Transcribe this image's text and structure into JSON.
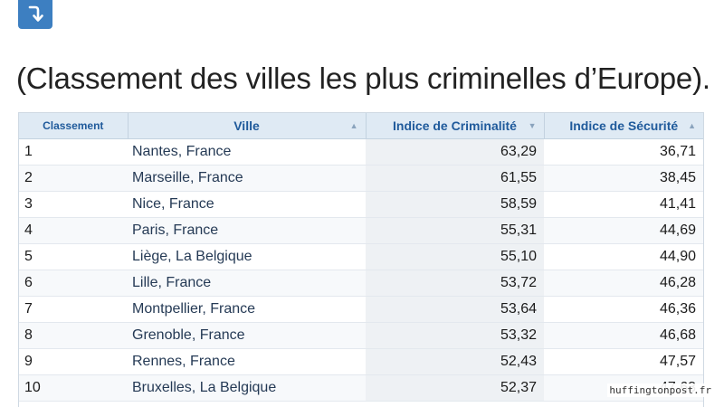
{
  "caption": "(Classement des villes les plus criminelles d’Europe).",
  "icon": "arrow-curve-down-icon",
  "accent_color": "#3d7fc1",
  "table": {
    "headers": [
      "Classement",
      "Ville",
      "Indice de Criminalité",
      "Indice de Sécurité"
    ],
    "rows": [
      {
        "rank": "1",
        "city": "Nantes, France",
        "crime": "63,29",
        "safety": "36,71"
      },
      {
        "rank": "2",
        "city": "Marseille, France",
        "crime": "61,55",
        "safety": "38,45"
      },
      {
        "rank": "3",
        "city": "Nice, France",
        "crime": "58,59",
        "safety": "41,41"
      },
      {
        "rank": "4",
        "city": "Paris, France",
        "crime": "55,31",
        "safety": "44,69"
      },
      {
        "rank": "5",
        "city": "Liège, La Belgique",
        "crime": "55,10",
        "safety": "44,90"
      },
      {
        "rank": "6",
        "city": "Lille, France",
        "crime": "53,72",
        "safety": "46,28"
      },
      {
        "rank": "7",
        "city": "Montpellier, France",
        "crime": "53,64",
        "safety": "46,36"
      },
      {
        "rank": "8",
        "city": "Grenoble, France",
        "crime": "53,32",
        "safety": "46,68"
      },
      {
        "rank": "9",
        "city": "Rennes, France",
        "crime": "52,43",
        "safety": "47,57"
      },
      {
        "rank": "10",
        "city": "Bruxelles, La Belgique",
        "crime": "52,37",
        "safety": "47,63"
      }
    ]
  },
  "watermark": "huffingtonpost.fr"
}
